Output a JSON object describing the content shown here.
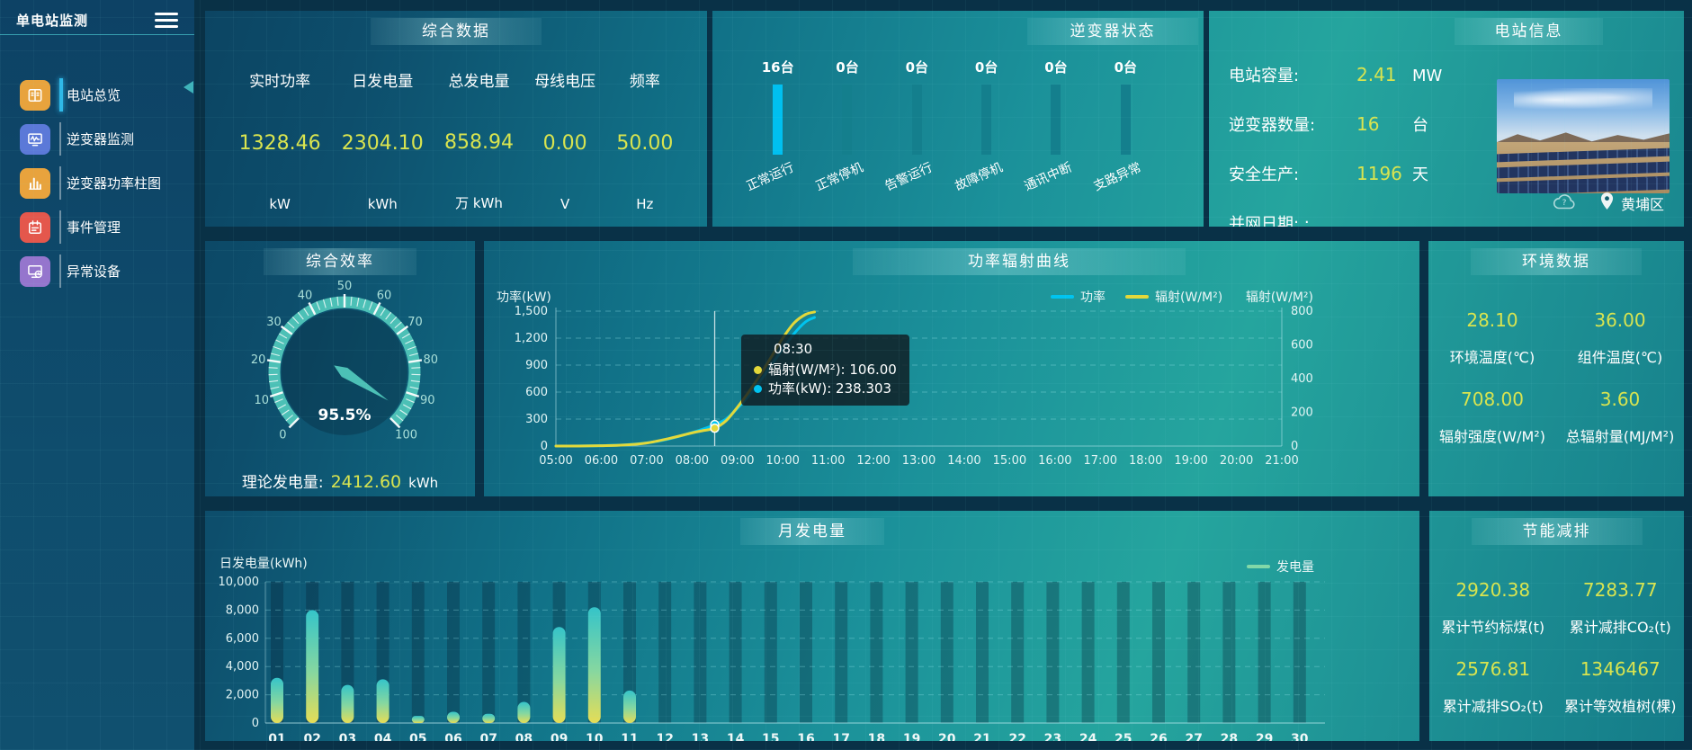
{
  "app": {
    "title": "单电站监测"
  },
  "sidebar": {
    "items": [
      {
        "label": "电站总览",
        "icon": "overview-icon",
        "color": "#e8a33d",
        "active": true
      },
      {
        "label": "逆变器监测",
        "icon": "inverter-monitor-icon",
        "color": "#5b79d8",
        "active": false
      },
      {
        "label": "逆变器功率柱图",
        "icon": "power-bars-icon",
        "color": "#e8a33d",
        "active": false
      },
      {
        "label": "事件管理",
        "icon": "event-icon",
        "color": "#e4574c",
        "active": false
      },
      {
        "label": "异常设备",
        "icon": "abnormal-device-icon",
        "color": "#9575cd",
        "active": false
      }
    ]
  },
  "summary": {
    "title": "综合数据",
    "metrics": [
      {
        "label": "实时功率",
        "value": "1328.46",
        "unit": "kW"
      },
      {
        "label": "日发电量",
        "value": "2304.10",
        "unit": "kWh"
      },
      {
        "label": "总发电量",
        "value": "858.94",
        "unit": "万 kWh"
      },
      {
        "label": "母线电压",
        "value": "0.00",
        "unit": "V"
      },
      {
        "label": "频率",
        "value": "50.00",
        "unit": "Hz"
      }
    ]
  },
  "inverter_status": {
    "title": "逆变器状态",
    "units": [
      {
        "count": "16台",
        "label": "正常运行",
        "highlight": true
      },
      {
        "count": "0台",
        "label": "正常停机",
        "highlight": false
      },
      {
        "count": "0台",
        "label": "告警运行",
        "highlight": false
      },
      {
        "count": "0台",
        "label": "故障停机",
        "highlight": false
      },
      {
        "count": "0台",
        "label": "通讯中断",
        "highlight": false
      },
      {
        "count": "0台",
        "label": "支路异常",
        "highlight": false
      }
    ]
  },
  "station_info": {
    "title": "电站信息",
    "rows": [
      {
        "label": "电站容量:",
        "value": "2.41",
        "unit": "MW"
      },
      {
        "label": "逆变器数量:",
        "value": "16",
        "unit": "台"
      },
      {
        "label": "安全生产:",
        "value": "1196",
        "unit": "天"
      },
      {
        "label": "并网日期: :",
        "value": "",
        "unit": ""
      }
    ],
    "location": "黄埔区"
  },
  "efficiency": {
    "title": "综合效率",
    "value_label": "95.5%",
    "theory_label": "理论发电量:",
    "theory_value": "2412.60",
    "theory_unit": "kWh"
  },
  "power_curve": {
    "title": "功率辐射曲线"
  },
  "environment": {
    "title": "环境数据",
    "metrics": [
      {
        "value": "28.10",
        "label": "环境温度(℃)"
      },
      {
        "value": "36.00",
        "label": "组件温度(℃)"
      },
      {
        "value": "708.00",
        "label": "辐射强度(W/M²)"
      },
      {
        "value": "3.60",
        "label": "总辐射量(MJ/M²)"
      }
    ]
  },
  "monthly": {
    "title": "月发电量"
  },
  "saving": {
    "title": "节能减排",
    "metrics": [
      {
        "value": "2920.38",
        "label": "累计节约标煤(t)"
      },
      {
        "value": "7283.77",
        "label": "累计减排CO₂(t)"
      },
      {
        "value": "2576.81",
        "label": "累计减排SO₂(t)"
      },
      {
        "value": "1346467",
        "label": "累计等效植树(棵)"
      }
    ]
  },
  "chart_data": [
    {
      "id": "power_radiation_curve",
      "type": "line",
      "title": "功率辐射曲线",
      "x_ticks": [
        "05:00",
        "06:00",
        "07:00",
        "08:00",
        "09:00",
        "10:00",
        "11:00",
        "12:00",
        "13:00",
        "14:00",
        "15:00",
        "16:00",
        "17:00",
        "18:00",
        "19:00",
        "20:00",
        "21:00"
      ],
      "x_range": [
        5,
        21
      ],
      "left_axis": {
        "label": "功率(kW)",
        "min": 0,
        "max": 1500,
        "ticks": [
          "0",
          "300",
          "600",
          "900",
          "1,200",
          "1,500"
        ]
      },
      "right_axis": {
        "label": "辐射(W/M²)",
        "min": 0,
        "max": 800,
        "ticks": [
          "0",
          "200",
          "400",
          "600",
          "800"
        ]
      },
      "grid": true,
      "legend_position": "top",
      "series": [
        {
          "name": "功率",
          "color": "#00c4f0",
          "axis": "left",
          "points": [
            [
              5,
              0
            ],
            [
              5.5,
              1
            ],
            [
              6,
              4
            ],
            [
              6.5,
              12
            ],
            [
              7,
              35
            ],
            [
              7.5,
              80
            ],
            [
              8,
              150
            ],
            [
              8.25,
              190
            ],
            [
              8.5,
              238.3
            ],
            [
              8.75,
              300
            ],
            [
              9,
              420
            ],
            [
              9.25,
              560
            ],
            [
              9.5,
              720
            ],
            [
              9.75,
              900
            ],
            [
              10,
              1080
            ],
            [
              10.25,
              1250
            ],
            [
              10.5,
              1380
            ],
            [
              10.7,
              1430
            ]
          ]
        },
        {
          "name": "辐射(W/M²)",
          "color": "#e3d83a",
          "axis": "right",
          "points": [
            [
              5,
              0
            ],
            [
              5.5,
              0
            ],
            [
              6,
              2
            ],
            [
              6.5,
              6
            ],
            [
              7,
              18
            ],
            [
              7.5,
              45
            ],
            [
              8,
              78
            ],
            [
              8.25,
              92
            ],
            [
              8.5,
              106
            ],
            [
              8.75,
              150
            ],
            [
              9,
              230
            ],
            [
              9.25,
              320
            ],
            [
              9.5,
              420
            ],
            [
              9.75,
              530
            ],
            [
              10,
              640
            ],
            [
              10.25,
              730
            ],
            [
              10.5,
              780
            ],
            [
              10.7,
              795
            ]
          ]
        }
      ],
      "tooltip": {
        "x": 8.5,
        "title": "08:30",
        "rows": [
          {
            "color": "#e3d83a",
            "text": "辐射(W/M²): 106.00"
          },
          {
            "color": "#00c4f0",
            "text": "功率(kW): 238.303"
          }
        ]
      }
    },
    {
      "id": "monthly_generation",
      "type": "bar",
      "title": "月发电量",
      "ylabel": "日发电量(kWh)",
      "legend": "发电量",
      "legend_color": "#82d8a8",
      "categories": [
        "01",
        "02",
        "03",
        "04",
        "05",
        "06",
        "07",
        "08",
        "09",
        "10",
        "11",
        "12",
        "13",
        "14",
        "15",
        "16",
        "17",
        "18",
        "19",
        "20",
        "21",
        "22",
        "23",
        "24",
        "25",
        "26",
        "27",
        "28",
        "29",
        "30"
      ],
      "values": [
        3200,
        8000,
        2700,
        3100,
        500,
        800,
        650,
        1500,
        6800,
        8200,
        2300,
        0,
        0,
        0,
        0,
        0,
        0,
        0,
        0,
        0,
        0,
        0,
        0,
        0,
        0,
        0,
        0,
        0,
        0,
        0
      ],
      "ylim": [
        0,
        10000
      ],
      "yticks": [
        "0",
        "2,000",
        "4,000",
        "6,000",
        "8,000",
        "10,000"
      ],
      "bar_gradient": {
        "top": "#35c4c9",
        "mid": "#86d7a0",
        "bottom": "#e6dd55"
      },
      "grid": true
    },
    {
      "id": "efficiency_gauge",
      "type": "gauge",
      "title": "综合效率",
      "value": 95.5,
      "min": 0,
      "max": 100,
      "tick_step": 10,
      "label": "95.5%",
      "color": "#4cc0b6"
    }
  ]
}
